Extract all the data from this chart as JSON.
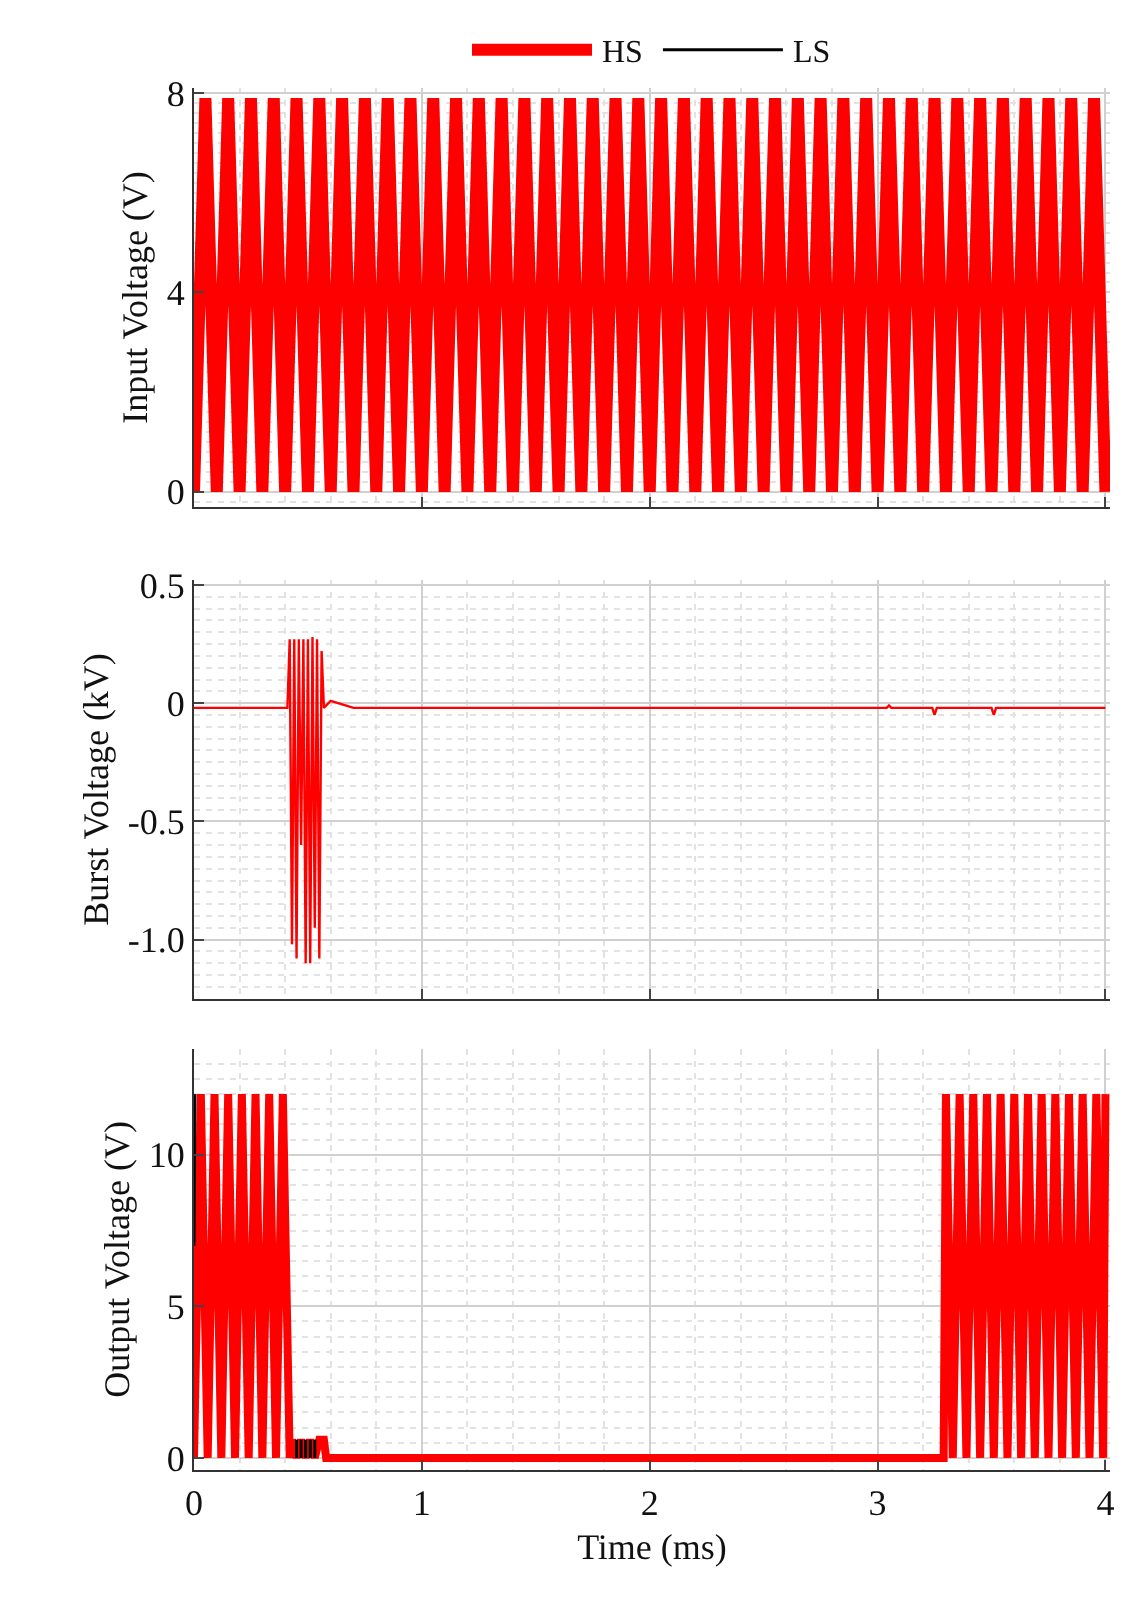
{
  "chart_data": [
    {
      "type": "line",
      "ylabel": "Input Voltage (V)",
      "xlim": [
        0,
        4.02
      ],
      "xticks": [
        0,
        1,
        2,
        3,
        4
      ],
      "ylim": [
        -0.3,
        8.1
      ],
      "yticks": [
        0,
        4,
        8
      ],
      "tick_labels": "y",
      "grid": true,
      "legend": "top",
      "line_style": "solid",
      "marker": "none",
      "series": [
        {
          "name": "HS",
          "color": "#ff0000",
          "x": [
            0,
            0.05,
            0.1,
            0.15,
            0.2,
            0.25,
            0.3,
            0.35,
            0.4,
            0.45,
            0.5,
            0.55,
            0.6,
            0.65,
            0.7,
            0.75,
            0.8,
            0.85,
            0.9,
            0.95,
            1,
            1.05,
            1.1,
            1.15,
            1.2,
            1.25,
            1.3,
            1.35,
            1.4,
            1.45,
            1.5,
            1.55,
            1.6,
            1.65,
            1.7,
            1.75,
            1.8,
            1.85,
            1.9,
            1.95,
            2,
            2.05,
            2.1,
            2.15,
            2.2,
            2.25,
            2.3,
            2.35,
            2.4,
            2.45,
            2.5,
            2.55,
            2.6,
            2.65,
            2.7,
            2.75,
            2.8,
            2.85,
            2.9,
            2.95,
            3,
            3.05,
            3.1,
            3.15,
            3.2,
            3.25,
            3.3,
            3.35,
            3.4,
            3.45,
            3.5,
            3.55,
            3.6,
            3.65,
            3.7,
            3.75,
            3.8,
            3.85,
            3.9,
            3.95,
            4
          ],
          "values": [
            0,
            7.9,
            0,
            7.9,
            0,
            7.9,
            0,
            7.9,
            0,
            7.9,
            0,
            7.9,
            0,
            7.9,
            0,
            7.9,
            0,
            7.9,
            0,
            7.9,
            0,
            7.9,
            0,
            7.9,
            0,
            7.9,
            0,
            7.9,
            0,
            7.9,
            0,
            7.9,
            0,
            7.9,
            0,
            7.9,
            0,
            7.9,
            0,
            7.9,
            0,
            7.9,
            0,
            7.9,
            0,
            7.9,
            0,
            7.9,
            0,
            7.9,
            0,
            7.9,
            0,
            7.9,
            0,
            7.9,
            0,
            7.9,
            0,
            7.9,
            0,
            7.9,
            0,
            7.9,
            0,
            7.9,
            0,
            7.9,
            0,
            7.9,
            0,
            7.9,
            0,
            7.9,
            0,
            7.9,
            0,
            7.9,
            0,
            7.9,
            0
          ]
        }
      ]
    },
    {
      "type": "line",
      "ylabel": "Burst Voltage (kV)",
      "xlim": [
        0,
        4.02
      ],
      "xticks": [
        0,
        1,
        2,
        3,
        4
      ],
      "ylim": [
        -1.25,
        0.52
      ],
      "yticks": [
        0.5,
        0,
        -0.5,
        {
          "value": -1,
          "label": "-1.0"
        }
      ],
      "tick_labels": "y",
      "grid": true,
      "line_style": "solid",
      "marker": "none",
      "series": [
        {
          "name": "HS",
          "color": "#ff0000",
          "x": [
            0,
            0.41,
            0.42,
            0.43,
            0.44,
            0.45,
            0.46,
            0.47,
            0.48,
            0.49,
            0.5,
            0.51,
            0.52,
            0.53,
            0.54,
            0.55,
            0.56,
            0.57,
            0.6,
            0.7,
            3.04,
            3.05,
            3.06,
            3.24,
            3.25,
            3.26,
            3.5,
            3.51,
            3.52,
            4
          ],
          "values": [
            -0.02,
            -0.02,
            0.27,
            -1.02,
            0.27,
            -1.08,
            0.27,
            -0.6,
            0.27,
            -1.1,
            0.27,
            -1.1,
            0.28,
            -0.95,
            0.27,
            -1.08,
            0.22,
            -0.02,
            0.01,
            -0.02,
            -0.02,
            -0.01,
            -0.02,
            -0.02,
            -0.05,
            -0.02,
            -0.02,
            -0.05,
            -0.02,
            -0.02
          ]
        }
      ]
    },
    {
      "type": "line",
      "xlabel": "Time (ms)",
      "ylabel": "Output Voltage (V)",
      "xlim": [
        0,
        4.02
      ],
      "xticks": [
        0,
        1,
        2,
        3,
        4
      ],
      "ylim": [
        -0.4,
        13.5
      ],
      "yticks": [
        0,
        5,
        10
      ],
      "grid": true,
      "line_style": "solid",
      "marker": "none",
      "series": [
        {
          "name": "HS",
          "color": "#ff0000",
          "x": [
            0,
            0.03,
            0.06,
            0.09,
            0.12,
            0.15,
            0.18,
            0.21,
            0.24,
            0.27,
            0.3,
            0.33,
            0.36,
            0.39,
            0.42,
            0.43,
            0.45,
            0.47,
            0.49,
            0.51,
            0.53,
            0.55,
            0.57,
            0.58,
            3.29,
            3.3,
            3.33,
            3.36,
            3.39,
            3.42,
            3.45,
            3.48,
            3.51,
            3.54,
            3.57,
            3.6,
            3.63,
            3.66,
            3.69,
            3.72,
            3.75,
            3.78,
            3.81,
            3.84,
            3.87,
            3.9,
            3.93,
            3.96,
            3.99,
            4
          ],
          "values": [
            0,
            12,
            0,
            12,
            0,
            12,
            0,
            12,
            0,
            12,
            0,
            12,
            0,
            12,
            0,
            0.6,
            0,
            0.6,
            0,
            0.6,
            0,
            0.6,
            0.6,
            0,
            0,
            12,
            0,
            12,
            0,
            12,
            0,
            12,
            0,
            12,
            0,
            12,
            0,
            12,
            0,
            12,
            0,
            12,
            0,
            12,
            0,
            12,
            0,
            12,
            0,
            12
          ]
        },
        {
          "name": "LS",
          "color": "#000000",
          "x": [
            0,
            0.004,
            0.44,
            0.45,
            0.45,
            0.46,
            0.47,
            0.47,
            0.48,
            0.49,
            0.49,
            0.5,
            0.51,
            0.51,
            0.52,
            0.53,
            0.53
          ],
          "values": [
            7,
            12,
            null,
            0,
            0.6,
            null,
            0,
            0.6,
            null,
            0,
            0.6,
            null,
            0,
            0.6,
            null,
            0,
            0.6
          ]
        }
      ]
    }
  ]
}
